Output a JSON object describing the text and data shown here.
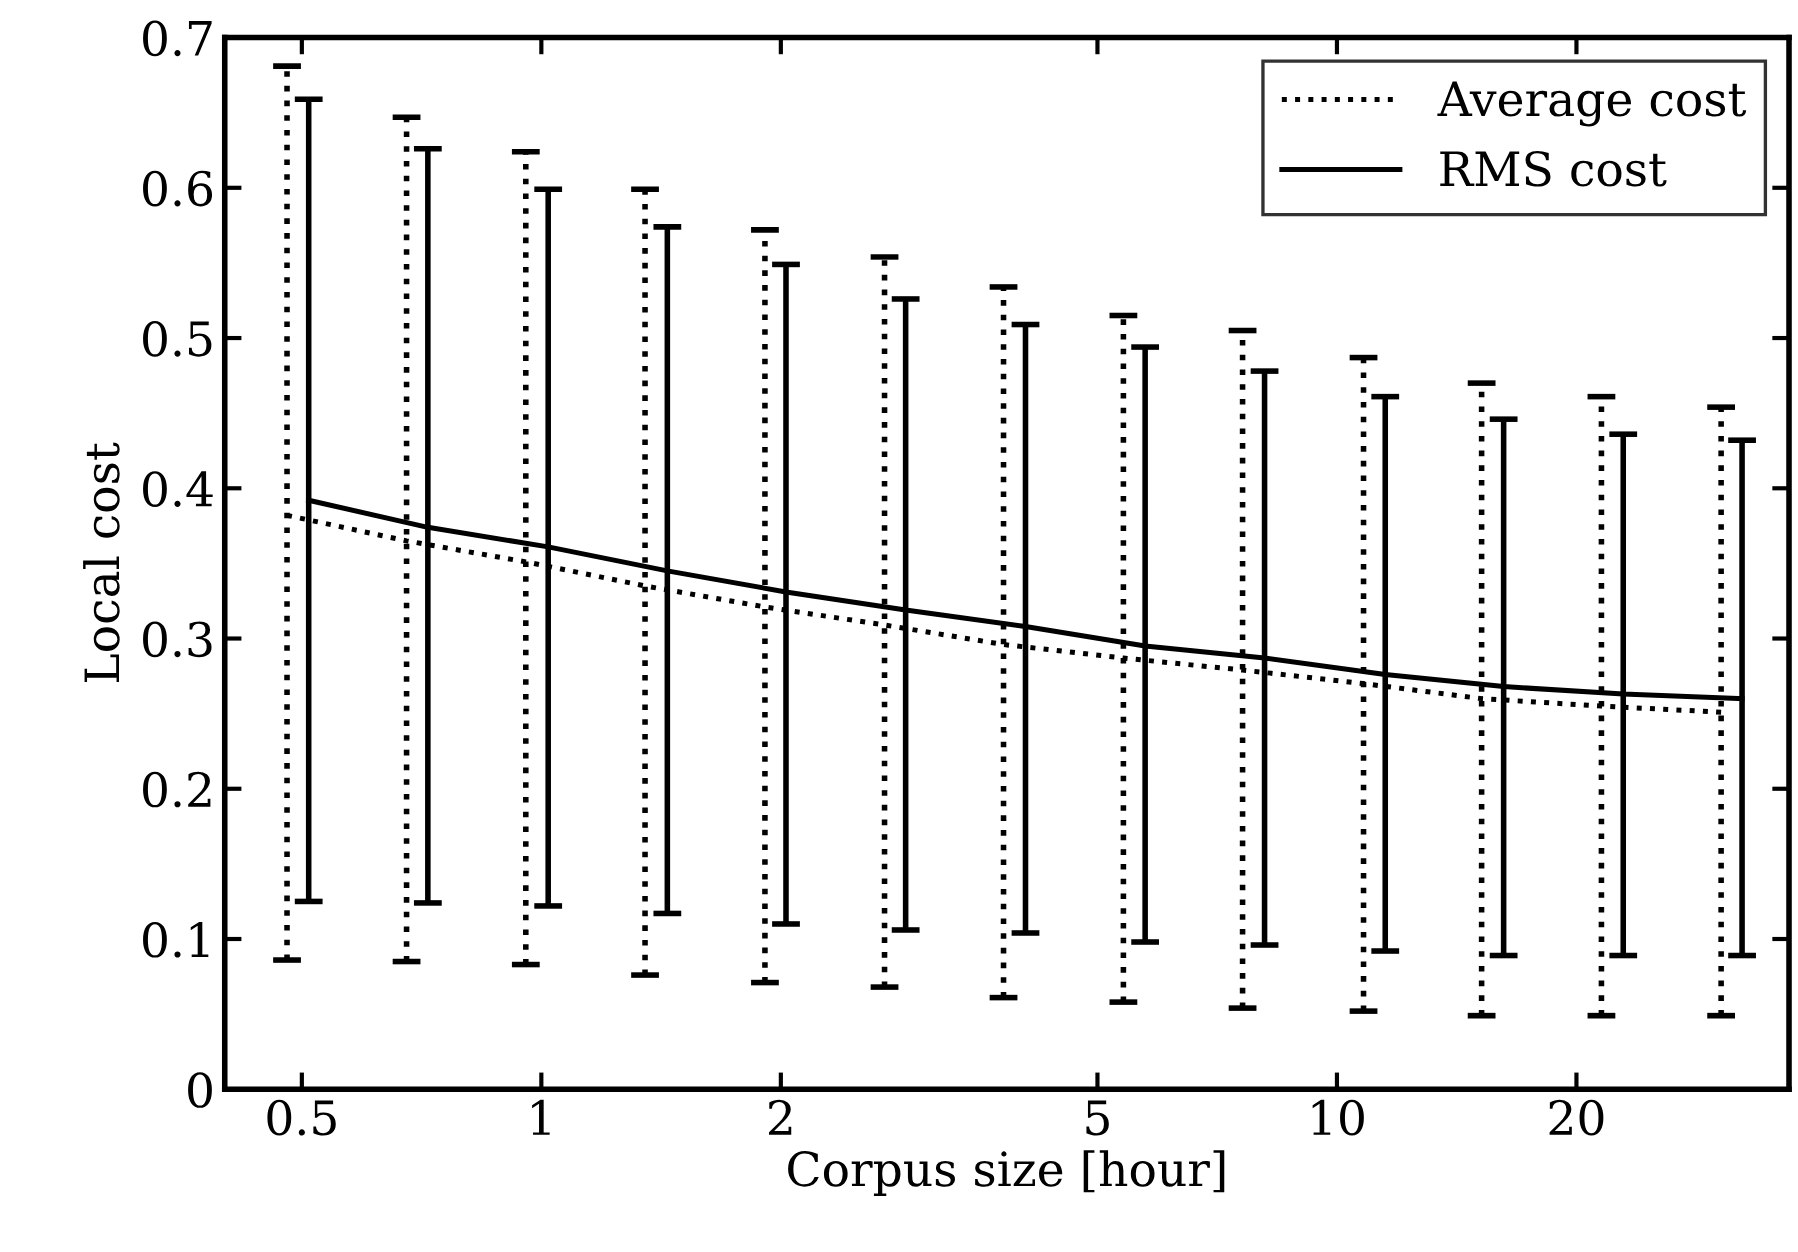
{
  "chart_data": {
    "type": "line",
    "xlabel": "Corpus size [hour]",
    "ylabel": "Local cost",
    "log": "x",
    "xlim": [
      0.4,
      37
    ],
    "xticks": [
      0.5,
      1,
      2,
      5,
      10,
      20
    ],
    "ylim": [
      0,
      0.7
    ],
    "yticks": [
      0,
      {
        "value": 0.1,
        "label": "0.1"
      },
      {
        "value": 0.2,
        "label": "0.2"
      },
      {
        "value": 0.3,
        "label": "0.3"
      },
      {
        "value": 0.4,
        "label": "0.4"
      },
      {
        "value": 0.5,
        "label": "0.5"
      },
      {
        "value": 0.6,
        "label": "0.6"
      },
      {
        "value": 0.7,
        "label": "0.7"
      }
    ],
    "grid": false,
    "legend": "top right",
    "marker": "none",
    "series": [
      {
        "name": "Average cost",
        "color": "#000000",
        "line_style": "dotted",
        "x": [
          0.479,
          0.677,
          0.956,
          1.35,
          1.91,
          2.7,
          3.81,
          5.39,
          7.61,
          10.8,
          15.2,
          21.5,
          30.4
        ],
        "values": [
          0.382,
          0.365,
          0.351,
          0.335,
          0.321,
          0.309,
          0.296,
          0.287,
          0.279,
          0.27,
          0.26,
          0.255,
          0.251
        ],
        "errors": [
          [
            0.086,
            0.681
          ],
          [
            0.085,
            0.647
          ],
          [
            0.083,
            0.624
          ],
          [
            0.076,
            0.599
          ],
          [
            0.071,
            0.572
          ],
          [
            0.068,
            0.554
          ],
          [
            0.061,
            0.534
          ],
          [
            0.058,
            0.515
          ],
          [
            0.054,
            0.505
          ],
          [
            0.052,
            0.487
          ],
          [
            0.049,
            0.47
          ],
          [
            0.049,
            0.461
          ],
          [
            0.049,
            0.454
          ]
        ]
      },
      {
        "name": "RMS cost",
        "color": "#000000",
        "line_style": "solid",
        "x": [
          0.51,
          0.72,
          1.02,
          1.44,
          2.03,
          2.87,
          4.06,
          5.74,
          8.11,
          11.5,
          16.2,
          22.9,
          32.3
        ],
        "values": [
          0.392,
          0.374,
          0.361,
          0.345,
          0.331,
          0.319,
          0.308,
          0.295,
          0.287,
          0.276,
          0.268,
          0.263,
          0.26
        ],
        "errors": [
          [
            0.125,
            0.659
          ],
          [
            0.124,
            0.626
          ],
          [
            0.122,
            0.599
          ],
          [
            0.117,
            0.574
          ],
          [
            0.11,
            0.549
          ],
          [
            0.106,
            0.526
          ],
          [
            0.104,
            0.509
          ],
          [
            0.098,
            0.494
          ],
          [
            0.096,
            0.478
          ],
          [
            0.092,
            0.461
          ],
          [
            0.089,
            0.446
          ],
          [
            0.089,
            0.436
          ],
          [
            0.089,
            0.432
          ]
        ]
      }
    ]
  }
}
